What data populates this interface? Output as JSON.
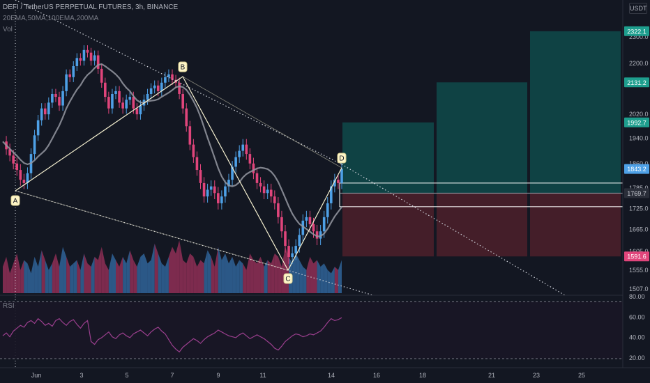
{
  "header": {
    "symbol_line": "DEFI / TetherUS PERPETUAL FUTURES, 3h, BINANCE",
    "indicators_line": "20EMA,50MA,100EMA,200MA",
    "volume_label": "Vol",
    "currency": "USDT",
    "rsi_label": "RSI"
  },
  "colors": {
    "background": "#131722",
    "bull": "#4ea0e6",
    "bear": "#e0457b",
    "ma_line": "#9598a1",
    "pattern": "#f5f0d0",
    "target_zone": "#0f4a4a",
    "stop_zone": "#4a1f2a",
    "rsi_line": "#9b3f8e"
  },
  "chart_data": [
    {
      "type": "candlestick",
      "title": "DEFI / TetherUS PERPETUAL FUTURES, 3h, BINANCE",
      "y_axis_ticks": [
        "2300.0",
        "2200.0",
        "2020.0",
        "1940.0",
        "1860.0",
        "1785.0",
        "1725.0",
        "1665.0",
        "1605.0",
        "1555.0",
        "1507.0"
      ],
      "x_axis_ticks": [
        "Jun",
        "3",
        "5",
        "7",
        "9",
        "11",
        "14",
        "16",
        "18",
        "21",
        "23",
        "25"
      ],
      "price_labels": [
        {
          "value": "2322.1",
          "color": "#1e9e8e"
        },
        {
          "value": "2131.2",
          "color": "#1e9e8e"
        },
        {
          "value": "1992.7",
          "color": "#1e9e8e"
        },
        {
          "value": "1843.2",
          "color": "#4ea0e6"
        },
        {
          "value": "1769.7",
          "color": "#b2b5be"
        },
        {
          "value": "1591.6",
          "color": "#e0457b"
        }
      ],
      "pattern_points": [
        {
          "label": "A",
          "x": "May 31",
          "y": 1795
        },
        {
          "label": "B",
          "x": "Jun 7",
          "y": 2165
        },
        {
          "label": "C",
          "x": "Jun 12",
          "y": 1570
        },
        {
          "label": "D",
          "x": "Jun 14",
          "y": 1843
        }
      ],
      "close_path": [
        1930,
        1905,
        1885,
        1860,
        1840,
        1810,
        1800,
        1830,
        1890,
        1950,
        2000,
        2040,
        2020,
        2060,
        2090,
        2080,
        2050,
        2100,
        2160,
        2150,
        2190,
        2220,
        2210,
        2250,
        2240,
        2210,
        2230,
        2180,
        2130,
        2080,
        2040,
        2090,
        2100,
        2060,
        2040,
        2070,
        2080,
        2040,
        2020,
        2050,
        2070,
        2090,
        2110,
        2120,
        2100,
        2130,
        2150,
        2160,
        2140,
        2130,
        2090,
        2040,
        1980,
        1920,
        1880,
        1840,
        1800,
        1760,
        1780,
        1790,
        1770,
        1740,
        1760,
        1790,
        1810,
        1850,
        1880,
        1900,
        1920,
        1890,
        1860,
        1830,
        1800,
        1790,
        1770,
        1780,
        1760,
        1740,
        1700,
        1660,
        1620,
        1590,
        1600,
        1620,
        1650,
        1690,
        1700,
        1680,
        1660,
        1640,
        1660,
        1700,
        1740,
        1790,
        1810,
        1800,
        1843
      ],
      "volume": [
        40,
        55,
        30,
        45,
        60,
        35,
        50,
        45,
        30,
        55,
        40,
        65,
        50,
        35,
        45,
        60,
        40,
        70,
        55,
        40,
        45,
        50,
        35,
        60,
        45,
        40,
        55,
        50,
        70,
        45,
        35,
        60,
        50,
        40,
        55,
        45,
        65,
        50,
        40,
        55,
        60,
        45,
        50,
        75,
        60,
        45,
        40,
        55,
        70,
        60,
        80,
        50,
        45,
        60,
        55,
        40,
        50,
        45,
        65,
        55,
        40,
        70,
        50,
        60,
        45,
        55,
        40,
        50,
        45,
        35,
        60,
        50,
        45,
        55,
        40,
        50,
        45,
        60,
        55,
        40,
        70,
        55,
        45,
        60,
        50,
        40,
        35,
        55,
        45,
        50,
        40,
        45,
        35,
        30,
        40,
        35,
        50
      ],
      "rsi": [
        44,
        47,
        43,
        49,
        52,
        55,
        53,
        58,
        60,
        57,
        62,
        59,
        55,
        57,
        54,
        60,
        62,
        58,
        55,
        59,
        61,
        56,
        52,
        57,
        60,
        38,
        35,
        40,
        42,
        45,
        48,
        43,
        41,
        45,
        47,
        44,
        42,
        46,
        48,
        50,
        47,
        44,
        48,
        51,
        53,
        49,
        46,
        40,
        34,
        30,
        27,
        32,
        35,
        38,
        41,
        39,
        36,
        40,
        43,
        45,
        47,
        50,
        48,
        46,
        44,
        43,
        42,
        45,
        47,
        44,
        41,
        43,
        45,
        43,
        41,
        38,
        35,
        31,
        29,
        33,
        38,
        41,
        44,
        46,
        45,
        43,
        44,
        46,
        45,
        47,
        49,
        53,
        58,
        62,
        60,
        61,
        63
      ],
      "rsi_levels": [
        "80.00",
        "60.00",
        "40.00",
        "20.00"
      ]
    }
  ]
}
